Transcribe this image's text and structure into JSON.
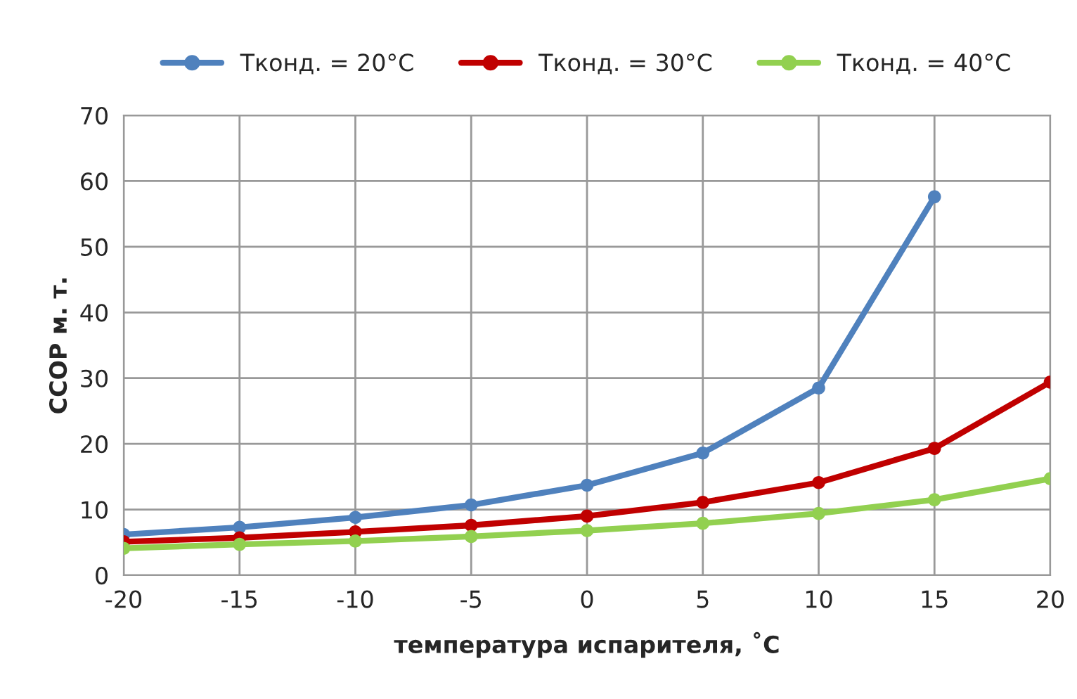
{
  "chart_data": {
    "type": "line",
    "xlabel": "температура испарителя, ˚С",
    "ylabel": "CCOP м. т.",
    "x": [
      -20,
      -15,
      -10,
      -5,
      0,
      5,
      10,
      15,
      20
    ],
    "series": [
      {
        "name": "Tконд. = 20°C",
        "color": "#4f81bd",
        "values": [
          6.2,
          7.3,
          8.8,
          10.7,
          13.7,
          18.6,
          28.5,
          57.6,
          null
        ]
      },
      {
        "name": "Tконд. = 30°C",
        "color": "#c00000",
        "values": [
          5.1,
          5.7,
          6.6,
          7.6,
          9.0,
          11.1,
          14.1,
          19.3,
          29.4
        ]
      },
      {
        "name": "Tконд. = 40°C",
        "color": "#92d050",
        "values": [
          4.1,
          4.7,
          5.2,
          5.9,
          6.8,
          7.9,
          9.4,
          11.5,
          14.7
        ]
      }
    ],
    "xlim": [
      -20,
      20
    ],
    "xticks": [
      -20,
      -15,
      -10,
      -5,
      0,
      5,
      10,
      15,
      20
    ],
    "ylim": [
      0,
      70
    ],
    "yticks": [
      0,
      10,
      20,
      30,
      40,
      50,
      60,
      70
    ],
    "grid": true,
    "legend": "top",
    "marker": "circle",
    "line_style": "solid"
  }
}
